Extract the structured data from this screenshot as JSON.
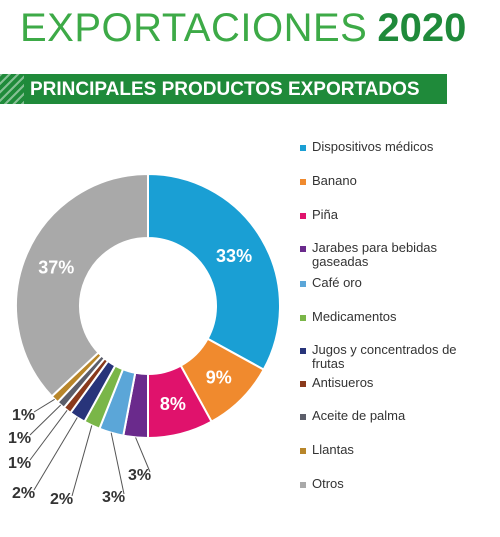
{
  "header": {
    "title_light": "EXPORTACIONES",
    "title_bold": "2020",
    "subtitle": "PRINCIPALES PRODUCTOS EXPORTADOS"
  },
  "colors": {
    "title_green": "#3daa47",
    "banner_green": "#1f8a3a"
  },
  "chart_data": {
    "type": "pie",
    "variant": "donut",
    "categories": [
      "Dispositivos médicos",
      "Banano",
      "Piña",
      "Jarabes para bebidas gaseadas",
      "Café oro",
      "Medicamentos",
      "Jugos y concentrados de frutas",
      "Antisueros",
      "Aceite de palma",
      "Llantas",
      "Otros"
    ],
    "values": [
      33,
      9,
      8,
      3,
      3,
      2,
      2,
      1,
      1,
      1,
      37
    ],
    "value_labels": [
      "33%",
      "9%",
      "8%",
      "3%",
      "3%",
      "2%",
      "2%",
      "1%",
      "1%",
      "1%",
      "37%"
    ],
    "colors": [
      "#1a9fd4",
      "#f08a2e",
      "#e0126c",
      "#6a2a8c",
      "#5ba6d8",
      "#7ab648",
      "#28347a",
      "#8a3a1c",
      "#5c5e6a",
      "#b8862a",
      "#a9a9a9"
    ],
    "legend_position": "right"
  }
}
